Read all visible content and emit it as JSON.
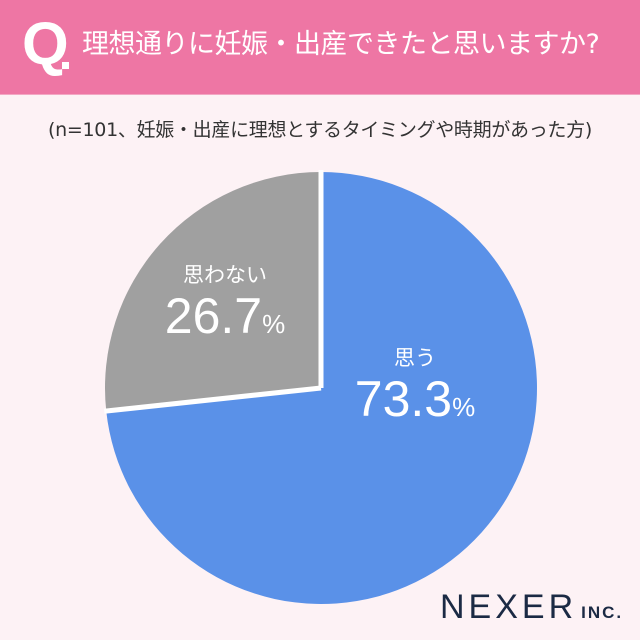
{
  "header": {
    "q_mark": "Q",
    "title": "理想通りに妊娠・出産できたと思いますか?"
  },
  "subtitle": "(n=101、妊娠・出産に理想とするタイミングや時期があった方)",
  "colors": {
    "header_bg": "#ee76a4",
    "page_bg": "#fdf2f5",
    "yes": "#5a91e8",
    "no": "#a0a0a0",
    "logo": "#1b2a44"
  },
  "chart_data": {
    "type": "pie",
    "title": "理想通りに妊娠・出産できたと思いますか?",
    "subtitle": "(n=101、妊娠・出産に理想とするタイミングや時期があった方)",
    "categories": [
      "思う",
      "思わない"
    ],
    "values": [
      73.3,
      26.7
    ],
    "unit": "%",
    "start_angle": "12 o'clock",
    "legend": "inline labels"
  },
  "labels": {
    "yes": {
      "name": "思う",
      "value": "73.3",
      "pct": "%"
    },
    "no": {
      "name": "思わない",
      "value": "26.7",
      "pct": "%"
    }
  },
  "logo": {
    "main": "NEXER",
    "inc": "INC."
  }
}
